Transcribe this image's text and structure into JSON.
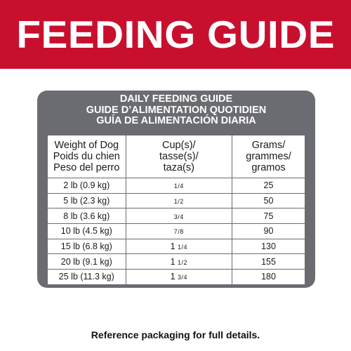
{
  "banner": {
    "title": "FEEDING GUIDE"
  },
  "guide": {
    "heading_en": "DAILY FEEDING GUIDE",
    "heading_fr": "GUIDE D’ALIMENTATION QUOTIDIEN",
    "heading_es": "GUÍA DE ALIMENTACIÓN DIARIA",
    "columns": {
      "weight": [
        "Weight of Dog",
        "Poids du chien",
        "Peso del perro"
      ],
      "cups": [
        "Cup(s)/",
        "tasse(s)/",
        "taza(s)"
      ],
      "grams": [
        "Grams/",
        "grammes/",
        "gramos"
      ]
    },
    "rows": [
      {
        "weight": "2 lb (0.9 kg)",
        "cups": "1/4",
        "grams": "25"
      },
      {
        "weight": "5 lb (2.3 kg)",
        "cups": "1/2",
        "grams": "50"
      },
      {
        "weight": "8 lb (3.6 kg)",
        "cups": "3/4",
        "grams": "75"
      },
      {
        "weight": "10 lb (4.5 kg)",
        "cups": "7/8",
        "grams": "90"
      },
      {
        "weight": "15 lb (6.8 kg)",
        "cups": "1 1/4",
        "grams": "130"
      },
      {
        "weight": "20 lb (9.1 kg)",
        "cups": "1 1/2",
        "grams": "155"
      },
      {
        "weight": "25 lb (11.3 kg)",
        "cups": "1 3/4",
        "grams": "180"
      }
    ]
  },
  "footnote": "Reference packaging for full details.",
  "colors": {
    "banner": "#c8102e",
    "card": "#6b6c72"
  }
}
